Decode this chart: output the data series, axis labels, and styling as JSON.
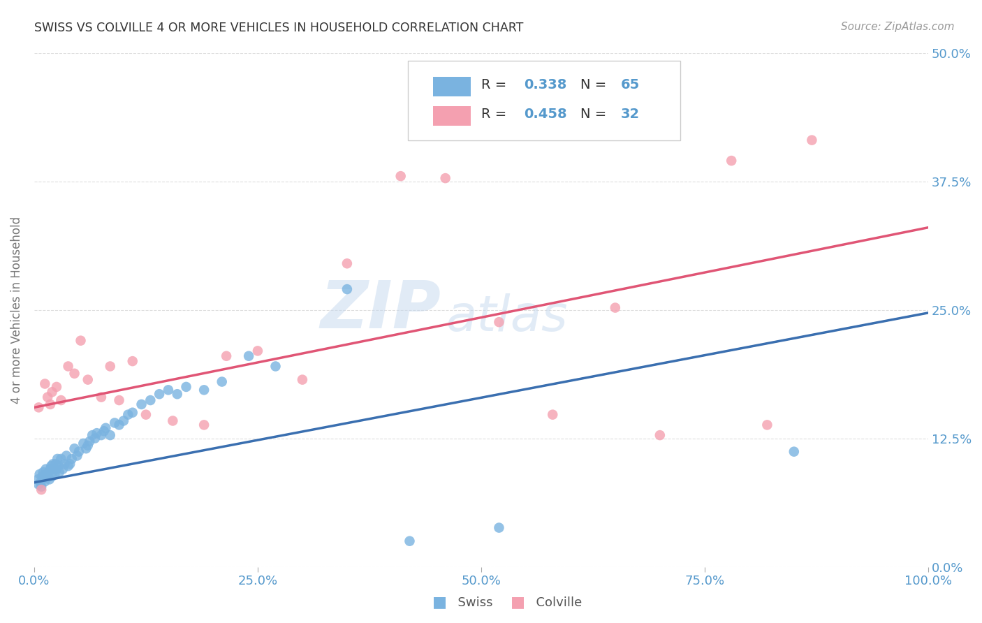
{
  "title": "SWISS VS COLVILLE 4 OR MORE VEHICLES IN HOUSEHOLD CORRELATION CHART",
  "source": "Source: ZipAtlas.com",
  "ylabel": "4 or more Vehicles in Household",
  "xlim": [
    0.0,
    1.0
  ],
  "ylim": [
    0.0,
    0.5
  ],
  "swiss_color": "#7ab3e0",
  "colville_color": "#f4a0b0",
  "swiss_line_color": "#3a6fb0",
  "colville_line_color": "#e05575",
  "swiss_R": "0.338",
  "swiss_N": "65",
  "colville_R": "0.458",
  "colville_N": "32",
  "watermark_zip": "ZIP",
  "watermark_atlas": "atlas",
  "swiss_line_intercept": 0.082,
  "swiss_line_slope": 0.165,
  "colville_line_intercept": 0.155,
  "colville_line_slope": 0.175,
  "swiss_x": [
    0.004,
    0.005,
    0.006,
    0.007,
    0.008,
    0.009,
    0.01,
    0.011,
    0.012,
    0.013,
    0.014,
    0.015,
    0.016,
    0.017,
    0.018,
    0.019,
    0.02,
    0.021,
    0.022,
    0.023,
    0.024,
    0.025,
    0.026,
    0.027,
    0.028,
    0.03,
    0.032,
    0.034,
    0.036,
    0.038,
    0.04,
    0.042,
    0.045,
    0.048,
    0.05,
    0.055,
    0.058,
    0.06,
    0.062,
    0.065,
    0.068,
    0.07,
    0.075,
    0.078,
    0.08,
    0.085,
    0.09,
    0.095,
    0.1,
    0.105,
    0.11,
    0.12,
    0.13,
    0.14,
    0.15,
    0.16,
    0.17,
    0.19,
    0.21,
    0.24,
    0.27,
    0.35,
    0.42,
    0.52,
    0.85
  ],
  "swiss_y": [
    0.085,
    0.08,
    0.09,
    0.082,
    0.078,
    0.088,
    0.092,
    0.086,
    0.083,
    0.095,
    0.09,
    0.087,
    0.092,
    0.085,
    0.095,
    0.098,
    0.088,
    0.1,
    0.095,
    0.09,
    0.1,
    0.095,
    0.105,
    0.098,
    0.092,
    0.105,
    0.095,
    0.1,
    0.108,
    0.098,
    0.1,
    0.105,
    0.115,
    0.108,
    0.112,
    0.12,
    0.115,
    0.118,
    0.122,
    0.128,
    0.125,
    0.13,
    0.128,
    0.132,
    0.135,
    0.128,
    0.14,
    0.138,
    0.142,
    0.148,
    0.15,
    0.158,
    0.162,
    0.168,
    0.172,
    0.168,
    0.175,
    0.172,
    0.18,
    0.205,
    0.195,
    0.27,
    0.025,
    0.038,
    0.112
  ],
  "colville_x": [
    0.005,
    0.008,
    0.012,
    0.015,
    0.018,
    0.02,
    0.025,
    0.03,
    0.038,
    0.045,
    0.052,
    0.06,
    0.075,
    0.085,
    0.095,
    0.11,
    0.125,
    0.155,
    0.19,
    0.215,
    0.25,
    0.3,
    0.35,
    0.41,
    0.46,
    0.52,
    0.58,
    0.65,
    0.7,
    0.78,
    0.82,
    0.87
  ],
  "colville_y": [
    0.155,
    0.075,
    0.178,
    0.165,
    0.158,
    0.17,
    0.175,
    0.162,
    0.195,
    0.188,
    0.22,
    0.182,
    0.165,
    0.195,
    0.162,
    0.2,
    0.148,
    0.142,
    0.138,
    0.205,
    0.21,
    0.182,
    0.295,
    0.38,
    0.378,
    0.238,
    0.148,
    0.252,
    0.128,
    0.395,
    0.138,
    0.415
  ],
  "background_color": "#ffffff",
  "grid_color": "#dddddd",
  "title_color": "#333333",
  "tick_label_color": "#5599cc",
  "ylabel_color": "#777777"
}
